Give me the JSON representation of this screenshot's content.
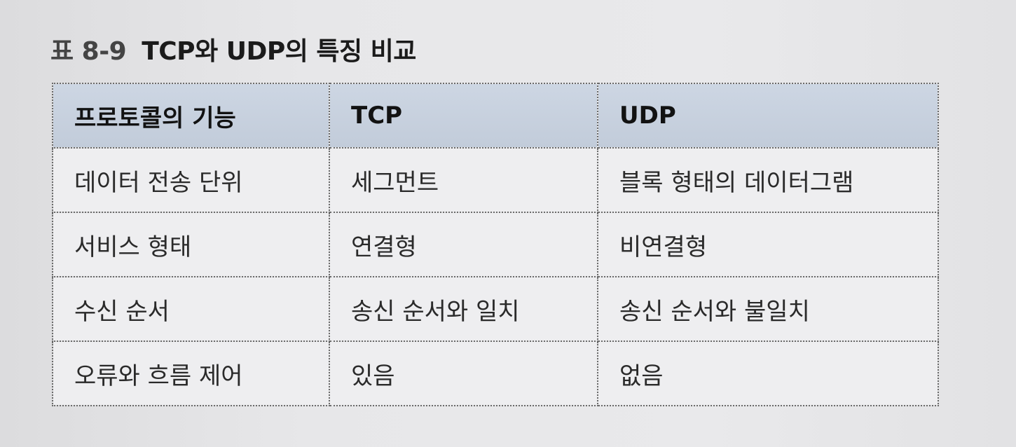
{
  "caption": {
    "number": "표 8-9",
    "title": "TCP와 UDP의 특징 비교"
  },
  "table": {
    "headers": [
      "프로토콜의 기능",
      "TCP",
      "UDP"
    ],
    "rows": [
      [
        "데이터 전송 단위",
        "세그먼트",
        "블록 형태의 데이터그램"
      ],
      [
        "서비스 형태",
        "연결형",
        "비연결형"
      ],
      [
        "수신 순서",
        "송신 순서와 일치",
        "송신 순서와 불일치"
      ],
      [
        "오류와 흐름 제어",
        "있음",
        "없음"
      ]
    ]
  },
  "colors": {
    "header_background": "#c6cfdc",
    "cell_background": "#eeeef0",
    "page_background": "#e4e4e6",
    "border": "#6a6a6a"
  }
}
